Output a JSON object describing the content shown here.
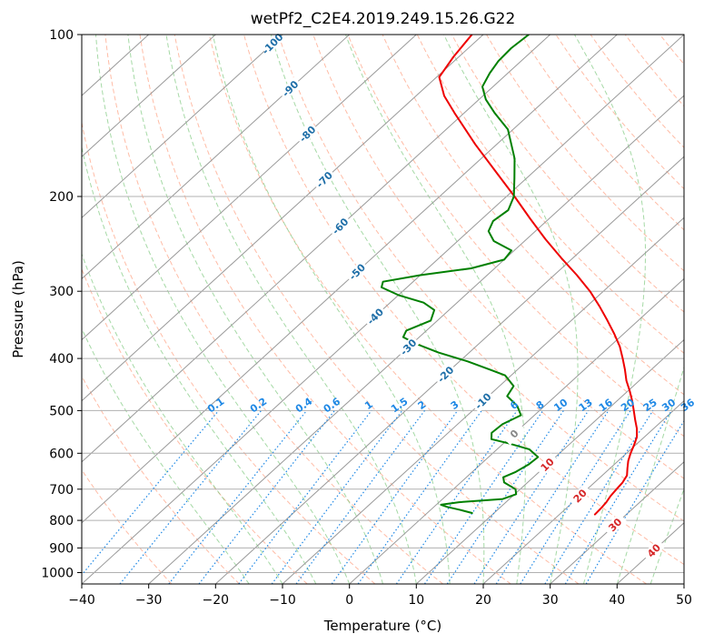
{
  "chart_data": {
    "type": "line",
    "subtype": "skew-T log-P diagram",
    "title": "wetPf2_C2E4.2019.249.15.26.G22",
    "xlabel": "Temperature (°C)",
    "ylabel": "Pressure (hPa)",
    "xlim": [
      -40,
      50
    ],
    "ylim": [
      1050,
      100
    ],
    "y_scale": "log",
    "grid": true,
    "x_ticks": [
      -40,
      -30,
      -20,
      -10,
      0,
      10,
      20,
      30,
      40,
      50
    ],
    "y_ticks": [
      100,
      200,
      300,
      400,
      500,
      600,
      700,
      800,
      900,
      1000
    ],
    "colors": {
      "temperature": "#ee0000",
      "dewpoint": "#008000",
      "isotherm": "#999999",
      "dry_adiabat": "#ff9f80",
      "moist_adiabat": "#7fc97f",
      "mixing_ratio": "#1e88e5",
      "isotherm_label_cold": "#1f6fa8",
      "isotherm_label_zero": "#888888",
      "isotherm_label_warm": "#d62728"
    },
    "isotherm_labels": [
      {
        "t": -100,
        "p": 104,
        "text": "-100"
      },
      {
        "t": -90,
        "p": 126,
        "text": "-90"
      },
      {
        "t": -80,
        "p": 153,
        "text": "-80"
      },
      {
        "t": -70,
        "p": 186,
        "text": "-70"
      },
      {
        "t": -60,
        "p": 227,
        "text": "-60"
      },
      {
        "t": -50,
        "p": 276,
        "text": "-50"
      },
      {
        "t": -40,
        "p": 334,
        "text": "-40"
      },
      {
        "t": -30,
        "p": 381,
        "text": "-30"
      },
      {
        "t": -20,
        "p": 428,
        "text": "-20"
      },
      {
        "t": -10,
        "p": 480,
        "text": "-10"
      },
      {
        "t": 0,
        "p": 552,
        "text": "0"
      },
      {
        "t": 10,
        "p": 630,
        "text": "10"
      },
      {
        "t": 20,
        "p": 720,
        "text": "20"
      },
      {
        "t": 30,
        "p": 815,
        "text": "30"
      },
      {
        "t": 40,
        "p": 910,
        "text": "40"
      }
    ],
    "mixing_ratio_labels": [
      "0.1",
      "0.2",
      "0.4",
      "0.6",
      "1",
      "1.5",
      "2",
      "3",
      "4",
      "6",
      "8",
      "10",
      "13",
      "16",
      "20",
      "25",
      "30",
      "36"
    ],
    "mixing_ratio_values": [
      0.1,
      0.2,
      0.4,
      0.6,
      1,
      1.5,
      2,
      3,
      4,
      6,
      8,
      10,
      13,
      16,
      20,
      25,
      30,
      36
    ],
    "mixing_ratio_label_pressure": 500,
    "series": [
      {
        "name": "",
        "role": "temperature",
        "color": "#ee0000",
        "points": [
          {
            "p": 780,
            "t": 25.3
          },
          {
            "p": 760,
            "t": 25.2
          },
          {
            "p": 740,
            "t": 25.0
          },
          {
            "p": 720,
            "t": 24.6
          },
          {
            "p": 700,
            "t": 24.4
          },
          {
            "p": 680,
            "t": 24.2
          },
          {
            "p": 660,
            "t": 23.7
          },
          {
            "p": 640,
            "t": 22.6
          },
          {
            "p": 620,
            "t": 21.5
          },
          {
            "p": 600,
            "t": 20.6
          },
          {
            "p": 580,
            "t": 19.8
          },
          {
            "p": 560,
            "t": 18.9
          },
          {
            "p": 540,
            "t": 17.5
          },
          {
            "p": 520,
            "t": 15.8
          },
          {
            "p": 500,
            "t": 14.1
          },
          {
            "p": 480,
            "t": 12.3
          },
          {
            "p": 460,
            "t": 10.3
          },
          {
            "p": 440,
            "t": 8.1
          },
          {
            "p": 420,
            "t": 6.1
          },
          {
            "p": 400,
            "t": 3.9
          },
          {
            "p": 380,
            "t": 1.5
          },
          {
            "p": 360,
            "t": -1.4
          },
          {
            "p": 340,
            "t": -4.6
          },
          {
            "p": 320,
            "t": -8.1
          },
          {
            "p": 300,
            "t": -12.0
          },
          {
            "p": 280,
            "t": -16.6
          },
          {
            "p": 260,
            "t": -21.8
          },
          {
            "p": 240,
            "t": -27.2
          },
          {
            "p": 220,
            "t": -32.8
          },
          {
            "p": 200,
            "t": -38.8
          },
          {
            "p": 180,
            "t": -45.6
          },
          {
            "p": 160,
            "t": -53.2
          },
          {
            "p": 140,
            "t": -61.4
          },
          {
            "p": 130,
            "t": -65.8
          },
          {
            "p": 120,
            "t": -69.6
          },
          {
            "p": 110,
            "t": -70.8
          },
          {
            "p": 100,
            "t": -71.7
          }
        ]
      },
      {
        "name": "",
        "role": "dewpoint",
        "color": "#008000",
        "points": [
          {
            "p": 775,
            "t": 6.7
          },
          {
            "p": 765,
            "t": 4.5
          },
          {
            "p": 755,
            "t": 2.0
          },
          {
            "p": 748,
            "t": 0.7
          },
          {
            "p": 740,
            "t": 3.0
          },
          {
            "p": 730,
            "t": 9.0
          },
          {
            "p": 715,
            "t": 10.2
          },
          {
            "p": 700,
            "t": 9.3
          },
          {
            "p": 680,
            "t": 6.5
          },
          {
            "p": 665,
            "t": 5.5
          },
          {
            "p": 650,
            "t": 6.5
          },
          {
            "p": 630,
            "t": 7.2
          },
          {
            "p": 610,
            "t": 7.4
          },
          {
            "p": 590,
            "t": 4.8
          },
          {
            "p": 575,
            "t": 0.7
          },
          {
            "p": 565,
            "t": -2.5
          },
          {
            "p": 550,
            "t": -3.5
          },
          {
            "p": 530,
            "t": -3.3
          },
          {
            "p": 510,
            "t": -2.0
          },
          {
            "p": 490,
            "t": -4.1
          },
          {
            "p": 470,
            "t": -7.2
          },
          {
            "p": 450,
            "t": -7.9
          },
          {
            "p": 430,
            "t": -10.9
          },
          {
            "p": 420,
            "t": -14.0
          },
          {
            "p": 405,
            "t": -18.8
          },
          {
            "p": 390,
            "t": -24.6
          },
          {
            "p": 375,
            "t": -29.6
          },
          {
            "p": 365,
            "t": -32.4
          },
          {
            "p": 355,
            "t": -33.0
          },
          {
            "p": 340,
            "t": -31.0
          },
          {
            "p": 325,
            "t": -32.2
          },
          {
            "p": 315,
            "t": -35.0
          },
          {
            "p": 305,
            "t": -40.0
          },
          {
            "p": 295,
            "t": -43.8
          },
          {
            "p": 288,
            "t": -44.5
          },
          {
            "p": 280,
            "t": -40.0
          },
          {
            "p": 272,
            "t": -33.5
          },
          {
            "p": 262,
            "t": -30.0
          },
          {
            "p": 252,
            "t": -30.4
          },
          {
            "p": 242,
            "t": -34.6
          },
          {
            "p": 232,
            "t": -37.0
          },
          {
            "p": 222,
            "t": -38.0
          },
          {
            "p": 212,
            "t": -37.5
          },
          {
            "p": 200,
            "t": -38.9
          },
          {
            "p": 185,
            "t": -41.8
          },
          {
            "p": 170,
            "t": -45.0
          },
          {
            "p": 150,
            "t": -50.8
          },
          {
            "p": 140,
            "t": -55.4
          },
          {
            "p": 132,
            "t": -59.0
          },
          {
            "p": 125,
            "t": -61.6
          },
          {
            "p": 118,
            "t": -62.7
          },
          {
            "p": 112,
            "t": -63.4
          },
          {
            "p": 106,
            "t": -63.6
          },
          {
            "p": 100,
            "t": -63.2
          }
        ]
      }
    ]
  }
}
